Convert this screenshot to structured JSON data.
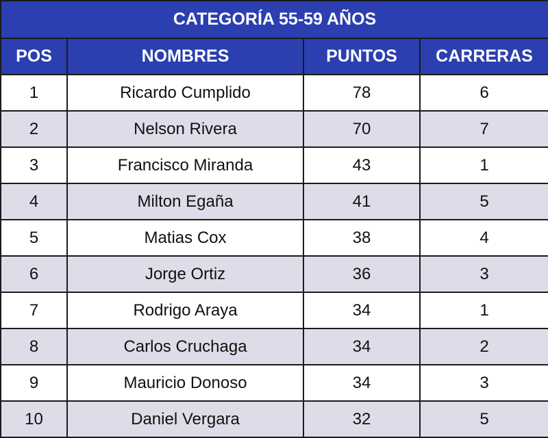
{
  "title": "CATEGORÍA 55-59 AÑOS",
  "headers": [
    "POS",
    "NOMBRES",
    "PUNTOS",
    "CARRERAS"
  ],
  "rows": [
    {
      "pos": "1",
      "name": "Ricardo Cumplido",
      "points": "78",
      "races": "6"
    },
    {
      "pos": "2",
      "name": "Nelson Rivera",
      "points": "70",
      "races": "7"
    },
    {
      "pos": "3",
      "name": "Francisco Miranda",
      "points": "43",
      "races": "1"
    },
    {
      "pos": "4",
      "name": "Milton Egaña",
      "points": "41",
      "races": "5"
    },
    {
      "pos": "5",
      "name": "Matias Cox",
      "points": "38",
      "races": "4"
    },
    {
      "pos": "6",
      "name": "Jorge Ortiz",
      "points": "36",
      "races": "3"
    },
    {
      "pos": "7",
      "name": "Rodrigo Araya",
      "points": "34",
      "races": "1"
    },
    {
      "pos": "8",
      "name": "Carlos Cruchaga",
      "points": "34",
      "races": "2"
    },
    {
      "pos": "9",
      "name": "Mauricio Donoso",
      "points": "34",
      "races": "3"
    },
    {
      "pos": "10",
      "name": "Daniel Vergara",
      "points": "32",
      "races": "5"
    }
  ],
  "colors": {
    "header_bg": "#2b3fb0",
    "stripe_bg": "#dcdde8",
    "border": "#1a1a1a"
  }
}
